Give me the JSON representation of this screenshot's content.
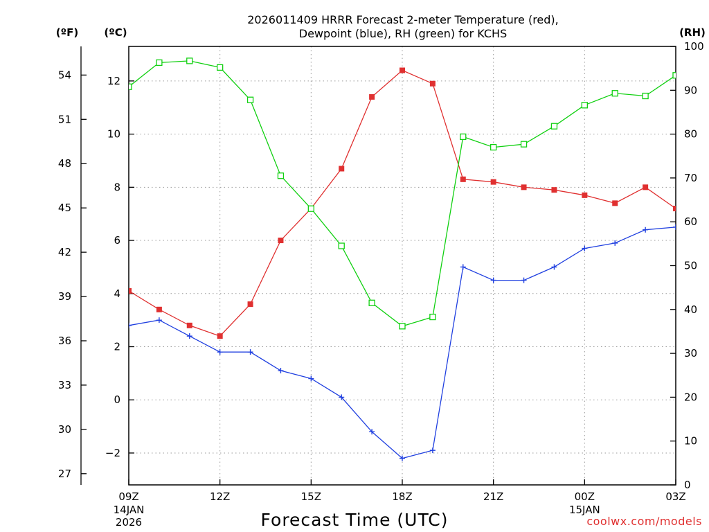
{
  "chart_data": {
    "type": "line",
    "title": "2026011409 HRRR Forecast 2-meter Temperature (red),",
    "subtitle": "Dewpoint (blue), RH (green) for KCHS",
    "xlabel": "Forecast Time (UTC)",
    "credit": "coolwx.com/models",
    "units": {
      "fahrenheit": "(ºF)",
      "celsius": "(ºC)",
      "rh": "(RH)"
    },
    "hours": [
      0,
      1,
      2,
      3,
      4,
      5,
      6,
      7,
      8,
      9,
      10,
      11,
      12,
      13,
      14,
      15,
      16,
      17,
      18
    ],
    "xlim": [
      0,
      18
    ],
    "x_ticks": [
      {
        "hour": 0,
        "label": "09Z",
        "date": "14JAN",
        "year": "2026"
      },
      {
        "hour": 3,
        "label": "12Z",
        "date": "",
        "year": ""
      },
      {
        "hour": 6,
        "label": "15Z",
        "date": "",
        "year": ""
      },
      {
        "hour": 9,
        "label": "18Z",
        "date": "",
        "year": ""
      },
      {
        "hour": 12,
        "label": "21Z",
        "date": "",
        "year": ""
      },
      {
        "hour": 15,
        "label": "00Z",
        "date": "15JAN",
        "year": ""
      },
      {
        "hour": 18,
        "label": "03Z",
        "date": "",
        "year": ""
      }
    ],
    "celsius_axis": {
      "ylim": [
        -3.2,
        13.3
      ],
      "ticks": [
        -2,
        0,
        2,
        4,
        6,
        8,
        10,
        12
      ]
    },
    "fahrenheit_axis": {
      "ticks": [
        27,
        30,
        33,
        36,
        39,
        42,
        45,
        48,
        51,
        54
      ]
    },
    "rh_axis": {
      "ylim": [
        0,
        100
      ],
      "ticks": [
        0,
        10,
        20,
        30,
        40,
        50,
        60,
        70,
        80,
        90,
        100
      ]
    },
    "series": [
      {
        "name": "Temperature (red)",
        "axis": "celsius",
        "color": "#e03030",
        "marker": "filled-square",
        "values": [
          4.1,
          3.4,
          2.8,
          2.4,
          3.6,
          6.0,
          7.2,
          8.7,
          11.4,
          12.4,
          11.9,
          8.3,
          8.2,
          8.0,
          7.9,
          7.7,
          7.4,
          8.0,
          7.2
        ]
      },
      {
        "name": "Dewpoint (blue)",
        "axis": "celsius",
        "color": "#2040e0",
        "marker": "plus",
        "values": [
          2.8,
          3.0,
          2.4,
          1.8,
          1.8,
          1.1,
          0.8,
          0.1,
          -1.2,
          -2.2,
          -1.9,
          5.0,
          4.5,
          4.5,
          5.0,
          5.7,
          5.9,
          6.4,
          6.5
        ]
      },
      {
        "name": "RH (green)",
        "axis": "rh",
        "color": "#10d010",
        "marker": "open-square",
        "values": [
          90.8,
          96.3,
          96.7,
          95.2,
          87.8,
          70.5,
          63.0,
          54.5,
          41.5,
          36.2,
          38.3,
          79.4,
          77.0,
          77.7,
          81.8,
          86.6,
          89.3,
          88.7,
          93.4
        ]
      }
    ]
  }
}
